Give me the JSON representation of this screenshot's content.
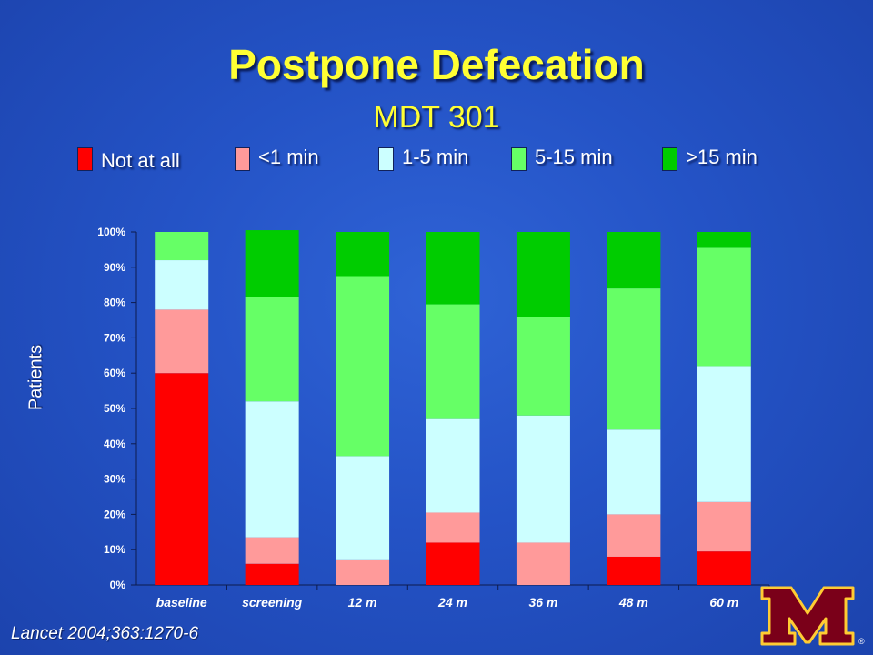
{
  "title": "Postpone Defecation",
  "subtitle": "MDT 301",
  "source": "Lancet 2004;363:1270-6",
  "logo": {
    "glyph": "M",
    "mark": "®",
    "colors": {
      "main": "#7a0019",
      "outline": "#ffcc33"
    }
  },
  "chart_data": {
    "type": "bar",
    "stacked": true,
    "categories": [
      "baseline",
      "screening",
      "12 m",
      "24 m",
      "36 m",
      "48 m",
      "60 m"
    ],
    "ylabel": "Patients",
    "ylim": [
      0,
      100
    ],
    "yticks": [
      "0%",
      "10%",
      "20%",
      "30%",
      "40%",
      "50%",
      "60%",
      "70%",
      "80%",
      "90%",
      "100%"
    ],
    "grid": false,
    "legend_position": "top",
    "series": [
      {
        "name": "Not at all",
        "color": "#ff0000",
        "values": [
          60,
          6,
          0,
          12,
          0,
          8,
          9.5
        ]
      },
      {
        "name": "<1 min",
        "color": "#ff9a9a",
        "values": [
          18,
          7.5,
          7,
          8.5,
          12,
          12,
          14
        ]
      },
      {
        "name": "1-5 min",
        "color": "#ccffff",
        "values": [
          14,
          38.5,
          29.5,
          26.5,
          36,
          24,
          38.5
        ]
      },
      {
        "name": "5-15 min",
        "color": "#66ff66",
        "values": [
          8,
          29.5,
          51,
          32.5,
          28,
          40,
          33.5
        ]
      },
      {
        "name": ">15 min",
        "color": "#00cc00",
        "values": [
          0,
          19,
          12.5,
          20.5,
          24,
          16,
          4.5
        ]
      }
    ]
  }
}
